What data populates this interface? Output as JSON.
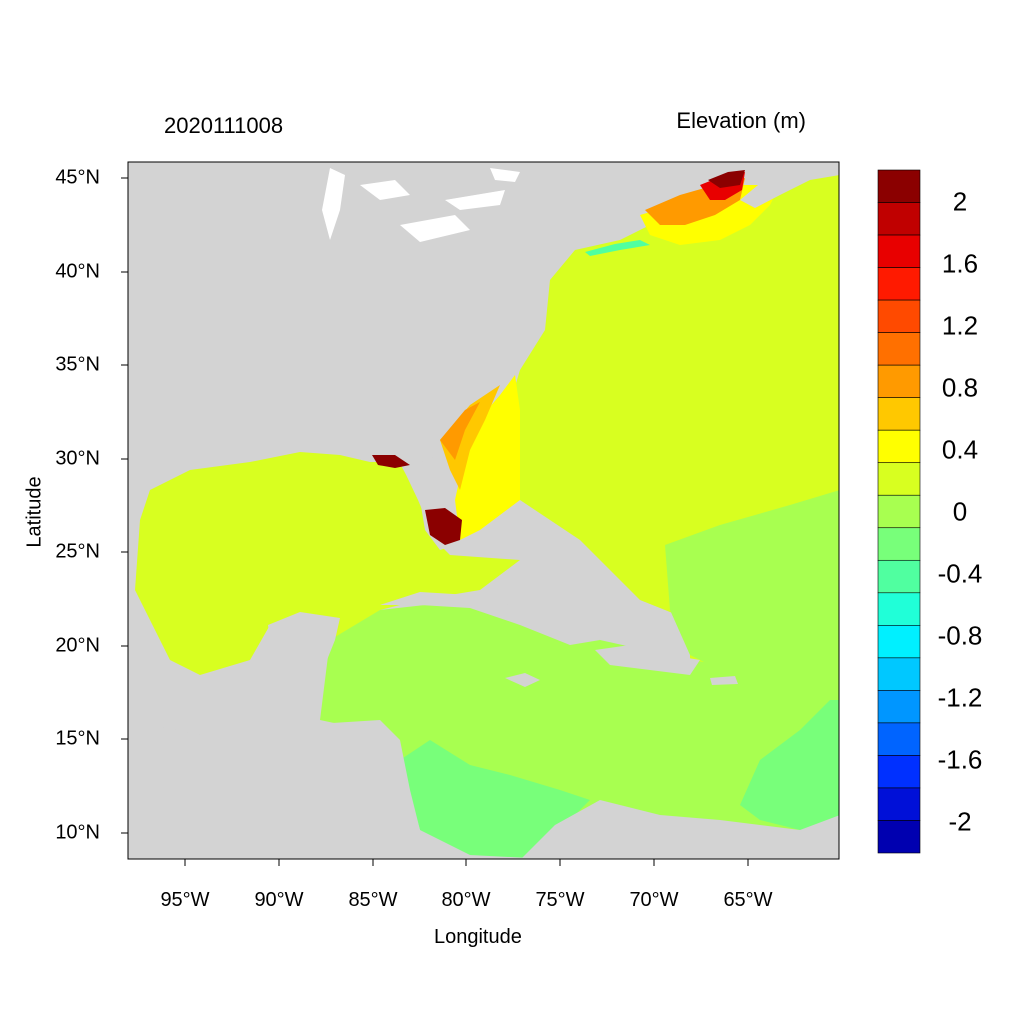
{
  "title_date": "2020111008",
  "title_var": "Elevation (m)",
  "x_axis_label": "Longitude",
  "y_axis_label": "Latitude",
  "x_ticks": [
    "95°W",
    "90°W",
    "85°W",
    "80°W",
    "75°W",
    "70°W",
    "65°W"
  ],
  "y_ticks": [
    "45°N",
    "40°N",
    "35°N",
    "30°N",
    "25°N",
    "20°N",
    "15°N",
    "10°N"
  ],
  "colorbar_labels": [
    "2",
    "1.6",
    "1.2",
    "0.8",
    "0.4",
    "0",
    "-0.4",
    "-0.8",
    "-1.2",
    "-1.6",
    "-2"
  ],
  "colorbar_colors": [
    "#8b0000",
    "#c00000",
    "#e80000",
    "#ff1a00",
    "#ff4a00",
    "#ff7000",
    "#ff9a00",
    "#ffc800",
    "#ffff00",
    "#d8ff20",
    "#a8ff50",
    "#78ff7a",
    "#50ffa0",
    "#20ffd8",
    "#00f0ff",
    "#00c8ff",
    "#0096ff",
    "#0064ff",
    "#0030ff",
    "#0010d8",
    "#0000b0"
  ],
  "land_color": "#d3d3d3"
}
